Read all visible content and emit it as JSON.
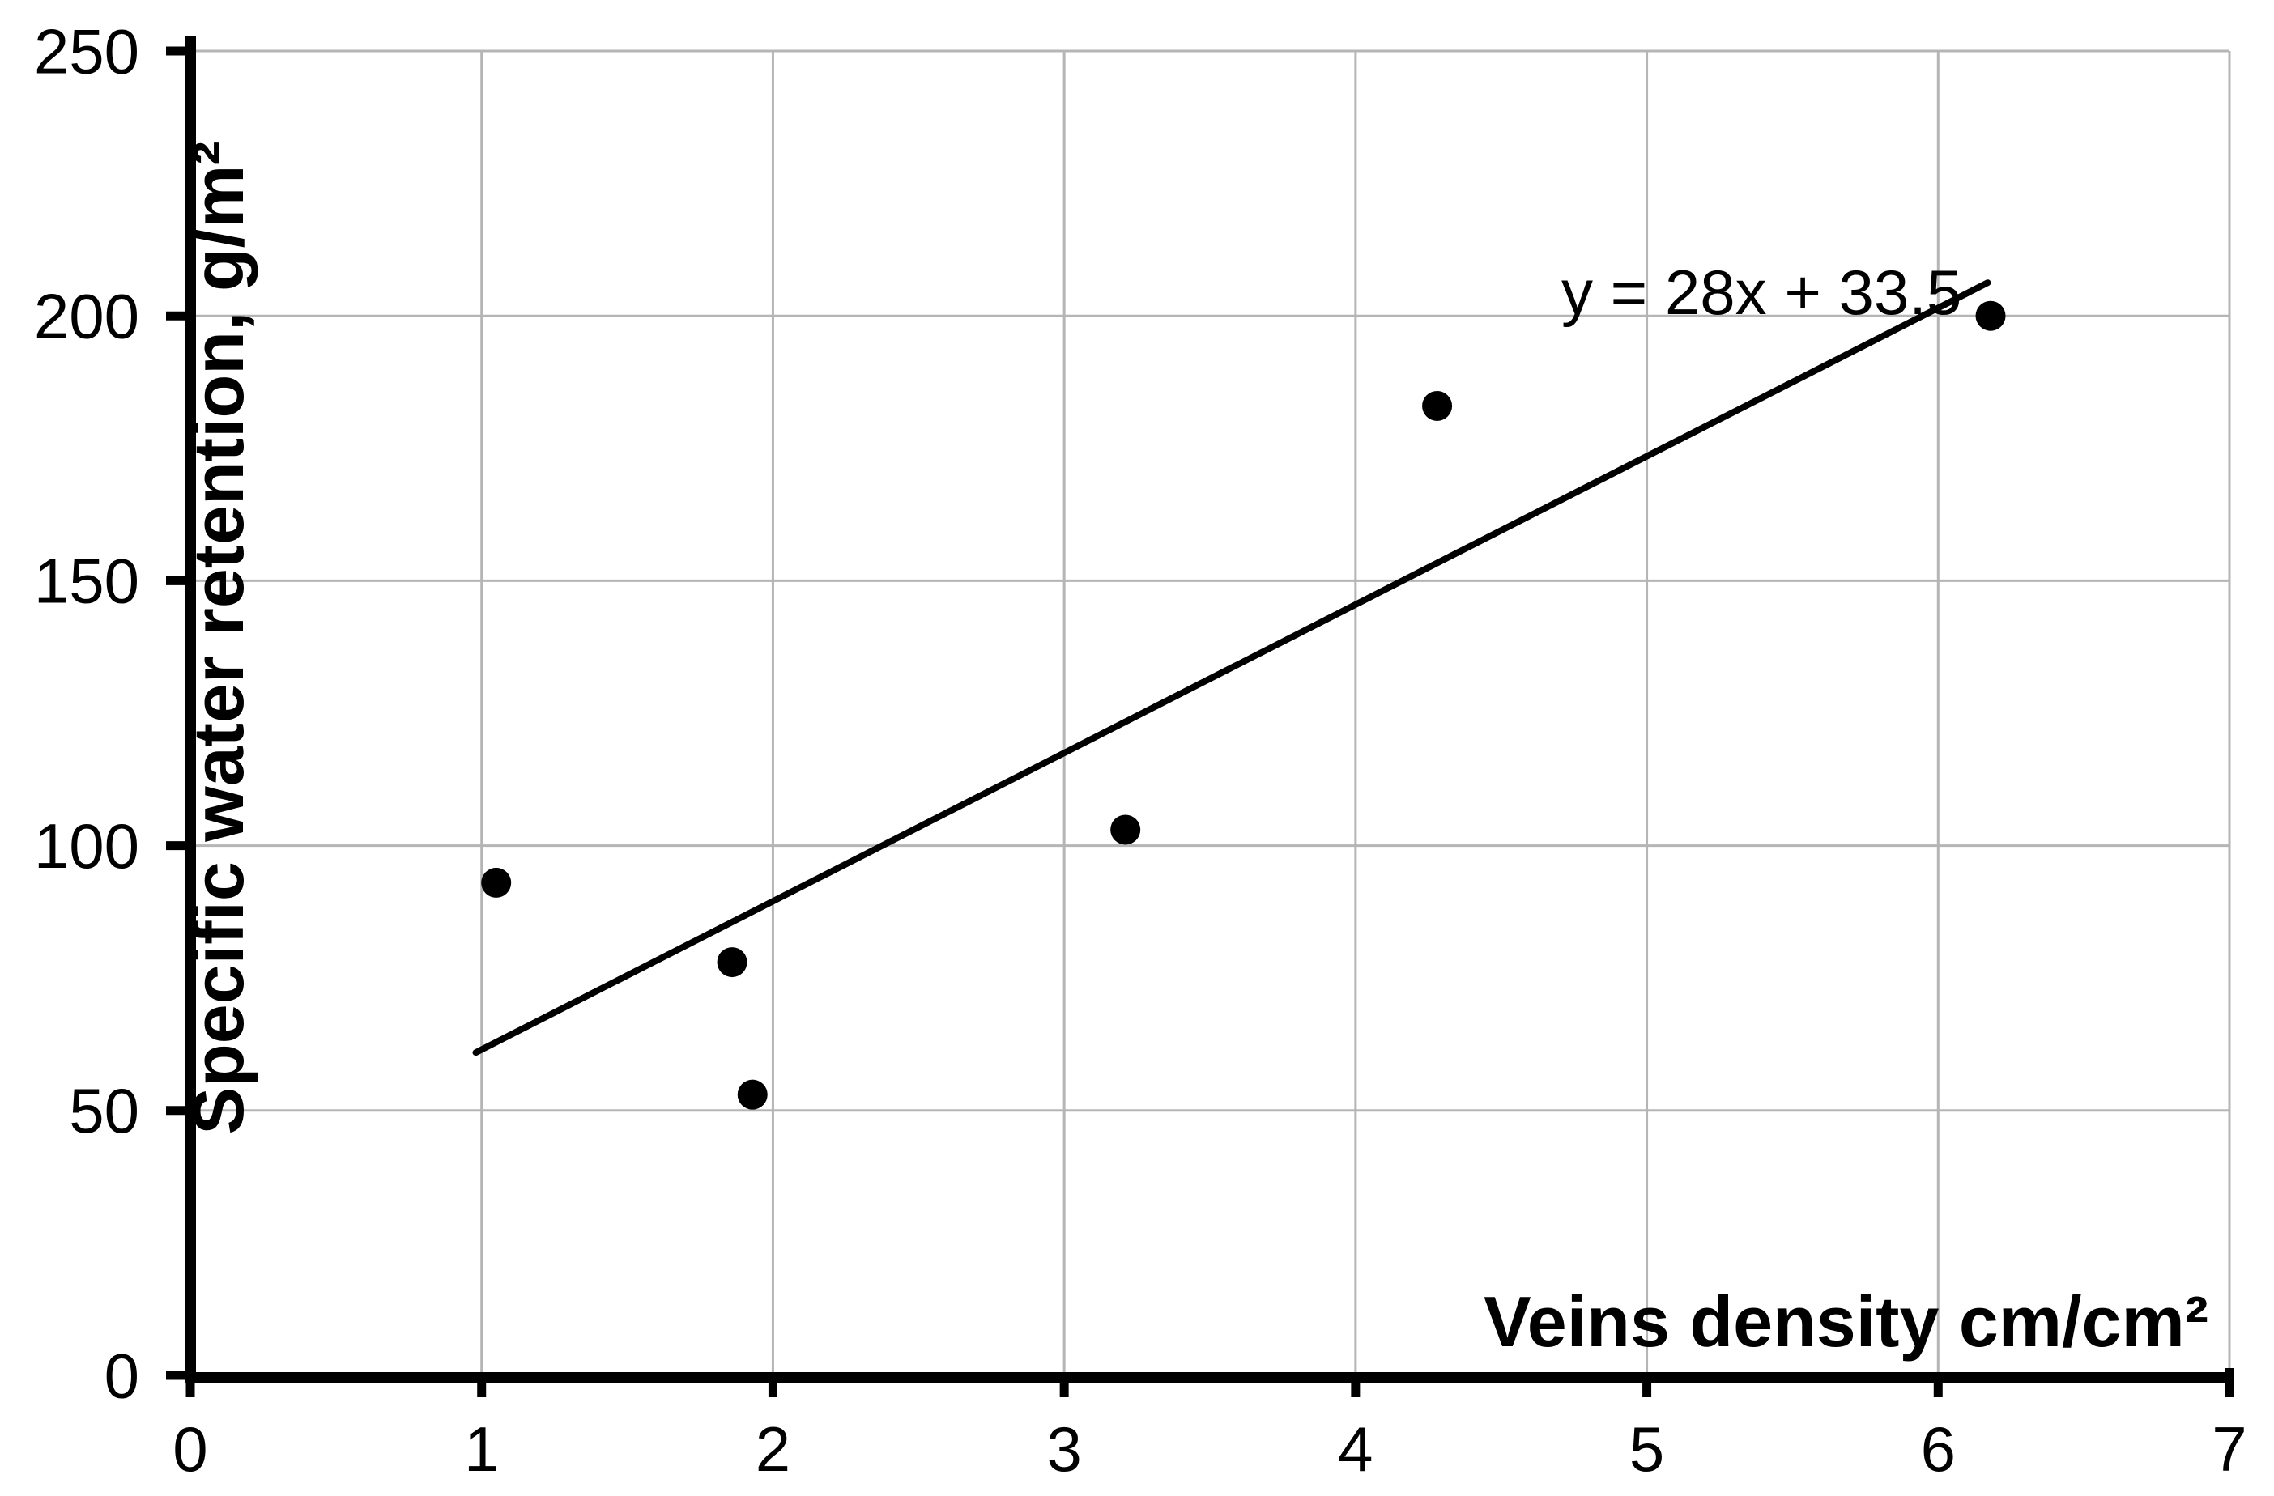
{
  "chart_data": {
    "type": "scatter",
    "title": "",
    "xlabel": "Veins density cm/cm²",
    "ylabel": "Specific water retention, g/m²",
    "xlim": [
      0,
      7
    ],
    "ylim": [
      0,
      250
    ],
    "x_ticks": [
      0,
      1,
      2,
      3,
      4,
      5,
      6,
      7
    ],
    "y_ticks": [
      0,
      50,
      100,
      150,
      200,
      250
    ],
    "grid": true,
    "legend": "none",
    "points": [
      [
        1.05,
        93
      ],
      [
        1.86,
        78
      ],
      [
        1.93,
        53
      ],
      [
        3.21,
        103
      ],
      [
        4.28,
        183
      ],
      [
        6.18,
        200
      ]
    ],
    "trendline": {
      "equation": "y = 28x + 33.5",
      "slope": 28,
      "intercept": 33.5,
      "x_start": 0.98,
      "x_end": 6.17
    },
    "colors": {
      "grid": "#b5b5b5",
      "axis": "#000000",
      "point": "#000000",
      "trend": "#000000",
      "text": "#000000"
    }
  }
}
